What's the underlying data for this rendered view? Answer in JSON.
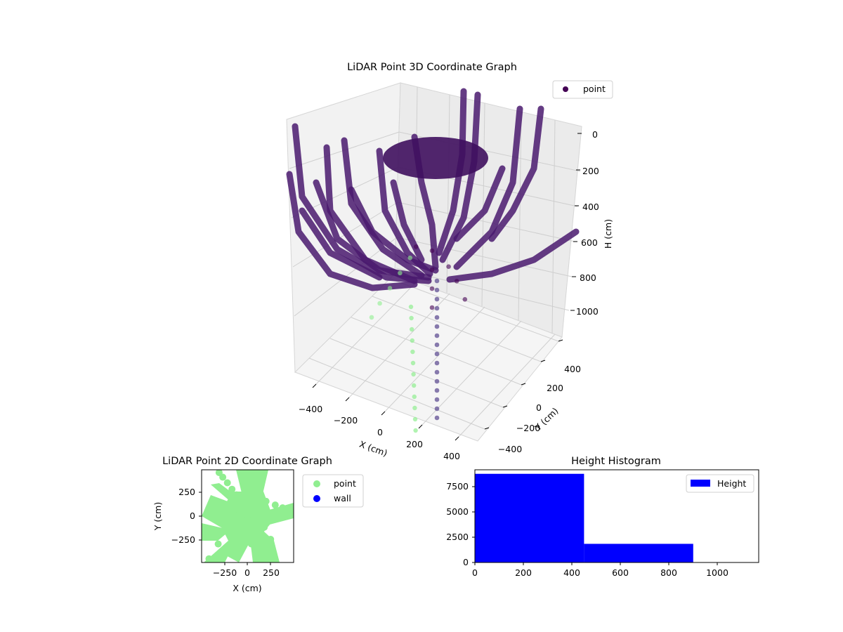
{
  "chart_data": [
    {
      "id": "lidar-3d",
      "type": "scatter",
      "title": "LiDAR Point 3D Coordinate Graph",
      "xlabel": "X (cm)",
      "ylabel": "Y (cm)",
      "zlabel": "H (cm)",
      "xlim": [
        -500,
        500
      ],
      "ylim": [
        -500,
        500
      ],
      "zlim": [
        0,
        1150
      ],
      "z_inverted": true,
      "xticks": [
        "−400",
        "−200",
        "0",
        "200",
        "400"
      ],
      "yticks": [
        "−400",
        "−200",
        "0",
        "200",
        "400"
      ],
      "zticks": [
        "0",
        "200",
        "400",
        "600",
        "800",
        "1000"
      ],
      "legend": {
        "placement": "top-right",
        "entries": [
          {
            "label": "point",
            "color": "#440154"
          }
        ]
      },
      "grid": true,
      "series": [
        {
          "name": "point",
          "color": "#440154",
          "points": [
            [
              0,
              0,
              1050
            ],
            [
              0,
              0,
              950
            ],
            [
              0,
              0,
              850
            ],
            [
              0,
              0,
              750
            ],
            [
              80,
              40,
              900
            ],
            [
              100,
              60,
              1000
            ],
            [
              60,
              20,
              820
            ],
            [
              -20,
              -60,
              700
            ]
          ]
        },
        {
          "name": "point",
          "color": "#90EE90",
          "points": [
            [
              -100,
              -200,
              1020
            ],
            [
              -80,
              -180,
              950
            ],
            [
              -60,
              -150,
              880
            ],
            [
              -40,
              -120,
              810
            ],
            [
              -20,
              -90,
              740
            ]
          ]
        }
      ]
    },
    {
      "id": "lidar-2d",
      "type": "scatter",
      "title": "LiDAR Point 2D Coordinate Graph",
      "xlabel": "X (cm)",
      "ylabel": "Y (cm)",
      "xlim": [
        -500,
        500
      ],
      "ylim": [
        -500,
        500
      ],
      "xticks": [
        "−250",
        "0",
        "250"
      ],
      "yticks": [
        "250",
        "0",
        "−250"
      ],
      "legend": {
        "placement": "right",
        "entries": [
          {
            "label": "point",
            "color": "#90EE90"
          },
          {
            "label": "wall",
            "color": "#0000FF"
          }
        ]
      },
      "series": [
        {
          "name": "point",
          "color": "#90EE90",
          "points": [
            [
              -310,
              470
            ],
            [
              -270,
              420
            ],
            [
              -220,
              360
            ],
            [
              -170,
              290
            ],
            [
              -120,
              230
            ],
            [
              -60,
              180
            ],
            [
              50,
              300
            ],
            [
              100,
              420
            ],
            [
              140,
              470
            ],
            [
              200,
              160
            ],
            [
              300,
              120
            ],
            [
              380,
              90
            ],
            [
              450,
              70
            ],
            [
              -400,
              30
            ],
            [
              -300,
              0
            ],
            [
              -200,
              -10
            ],
            [
              -100,
              10
            ],
            [
              0,
              0
            ],
            [
              100,
              -40
            ],
            [
              180,
              -120
            ],
            [
              250,
              -250
            ],
            [
              300,
              -470
            ],
            [
              -200,
              -180
            ],
            [
              -320,
              -300
            ],
            [
              -420,
              -460
            ],
            [
              -100,
              -380
            ],
            [
              40,
              -300
            ],
            [
              150,
              -400
            ]
          ]
        },
        {
          "name": "wall",
          "color": "#0000FF",
          "points": []
        }
      ]
    },
    {
      "id": "height-hist",
      "type": "bar",
      "title": "Height Histogram",
      "xlim": [
        0,
        1170
      ],
      "ylim": [
        0,
        9200
      ],
      "xticks": [
        "0",
        "200",
        "400",
        "600",
        "800",
        "1000"
      ],
      "yticks": [
        "0",
        "2500",
        "5000",
        "7500"
      ],
      "bins": [
        {
          "x0": 0,
          "x1": 450,
          "count": 8800
        },
        {
          "x0": 450,
          "x1": 900,
          "count": 1850
        }
      ],
      "series": [
        {
          "name": "Height",
          "color": "#0000FF"
        }
      ],
      "legend": {
        "placement": "top-right",
        "entries": [
          {
            "label": "Height",
            "color": "#0000FF"
          }
        ]
      }
    }
  ]
}
